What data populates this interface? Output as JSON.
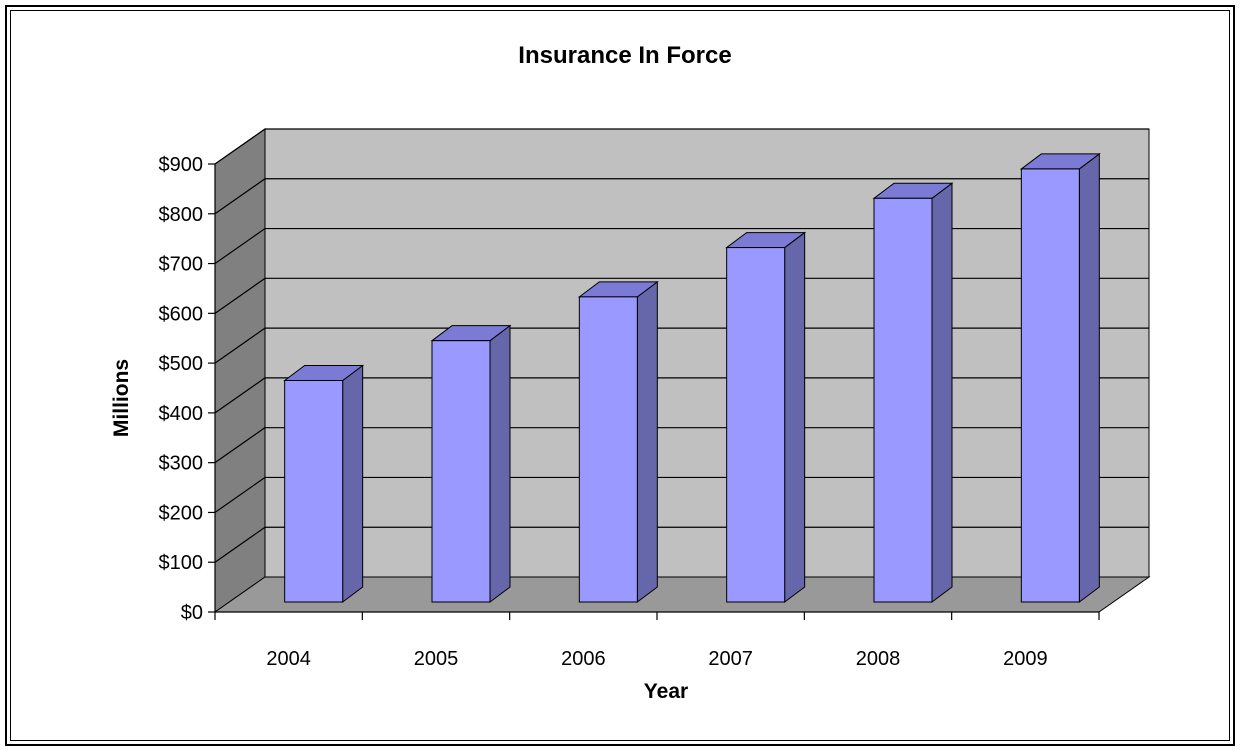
{
  "chart_data": {
    "type": "bar",
    "title": "Insurance In Force",
    "xlabel": "Year",
    "ylabel": "Millions",
    "categories": [
      "2004",
      "2005",
      "2006",
      "2007",
      "2008",
      "2009"
    ],
    "values": [
      445,
      525,
      613,
      712,
      811,
      870
    ],
    "ylim": [
      0,
      900
    ],
    "yticks": [
      0,
      100,
      200,
      300,
      400,
      500,
      600,
      700,
      800,
      900
    ],
    "ytick_labels": [
      "$0",
      "$100",
      "$200",
      "$300",
      "$400",
      "$500",
      "$600",
      "$700",
      "$800",
      "$900"
    ],
    "grid": true,
    "legend": "none",
    "colors": {
      "bar_front": "#9999ff",
      "bar_side": "#6666aa",
      "bar_top": "#7b7bd6",
      "wall_back": "#c0c0c0",
      "wall_side": "#808080",
      "floor": "#999999"
    }
  }
}
